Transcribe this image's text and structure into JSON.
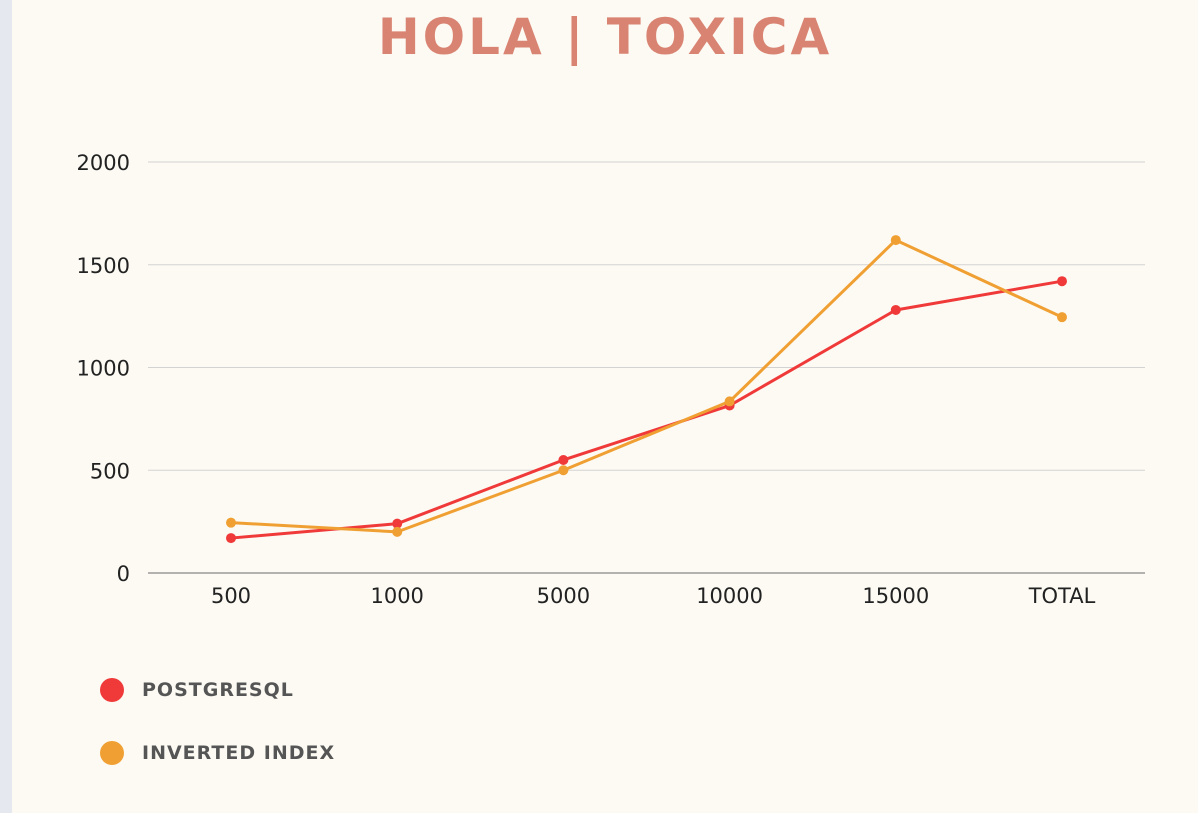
{
  "colors": {
    "background": "#fcfaf3",
    "title": "#d98473",
    "grid": "#d3d3d3",
    "axis": "#888888"
  },
  "chart_data": {
    "type": "line",
    "title": "HOLA | TOXICA",
    "xlabel": "",
    "ylabel": "",
    "categories": [
      "500",
      "1000",
      "5000",
      "10000",
      "15000",
      "TOTAL"
    ],
    "ylim": [
      0,
      2000
    ],
    "yticks": [
      0,
      500,
      1000,
      1500,
      2000
    ],
    "grid": true,
    "legend_position": "bottom-left",
    "series": [
      {
        "name": "POSTGRESQL",
        "color": "#f03a3a",
        "values": [
          170,
          240,
          550,
          815,
          1280,
          1420
        ]
      },
      {
        "name": "INVERTED INDEX",
        "color": "#f0a033",
        "values": [
          245,
          200,
          500,
          835,
          1620,
          1245
        ]
      }
    ]
  }
}
